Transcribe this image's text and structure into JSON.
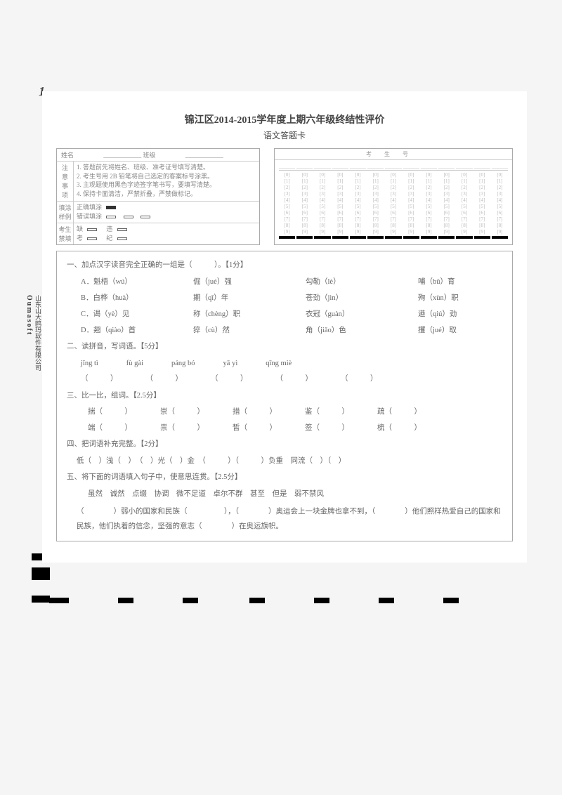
{
  "page_number": "1",
  "title": "锦江区2014-2015学年度上期六年级终结性评价",
  "subtitle": "语文答题卡",
  "info": {
    "name_label": "姓名",
    "class_label": "班级",
    "notice_label": "注意事项",
    "notice_lines": [
      "1. 答题前先将姓名、班级、准考证号填写清楚。",
      "2. 考生号用 2B 铅笔将自己选定的客案标号涂黑。",
      "3. 主观题使用黑色字迹签字笔书写，要填写清楚。",
      "4. 保持卡面清洁，严禁折叠，严禁做标记。"
    ],
    "fill_label": "填涂样例",
    "fill_correct": "正确填涂",
    "fill_wrong": "错误填涂",
    "exam_label": "考生",
    "exam_content_a": "缺",
    "exam_content_b": "违",
    "forbid_label": "禁填",
    "forbid_content_a": "考",
    "forbid_content_b": "纪"
  },
  "bubble": {
    "header": "考生号",
    "digits": [
      "[0]",
      "[1]",
      "[2]",
      "[3]",
      "[4]",
      "[5]",
      "[6]",
      "[7]",
      "[8]",
      "[9]"
    ]
  },
  "q1": {
    "stem": "一、加点汉字读音完全正确的一组是（　　　）。【1分】",
    "opts": [
      [
        "A．魁梧（wú）",
        "倔（jué）强",
        "勾勒（lè）",
        "哺（bǔ）育"
      ],
      [
        "B．白桦（huà）",
        "期（qī）年",
        "苍劲（jìn）",
        "殉（xùn）职"
      ],
      [
        "C．谒（yè）见",
        "称（chèng）职",
        "衣冠（guàn）",
        "遒（qiú）劲"
      ],
      [
        "D．翘（qiào）首",
        "猝（cù）然",
        "角（jiǎo）色",
        "攫（jué）取"
      ]
    ]
  },
  "q2": {
    "stem": "二、读拼音，写词语。【5分】",
    "pinyin": [
      "jǐng tì",
      "fù gài",
      "páng bó",
      "yā yì",
      "qīng miè"
    ]
  },
  "q3": {
    "stem": "三、比一比，组词。【2.5分】",
    "rows": [
      [
        "揣（　　　）",
        "崇（　　　）",
        "措（　　　）",
        "鉴（　　　）",
        "疏（　　　）"
      ],
      [
        "端（　　　）",
        "祟（　　　）",
        "皙（　　　）",
        "签（　　　）",
        "梳（　　　）"
      ]
    ]
  },
  "q4": {
    "stem": "四、把词语补充完整。【2分】",
    "line": "低（　）浅（　）　（　）光（　）金　（　　　）（　　　）负重　同流（　）（　）"
  },
  "q5": {
    "stem": "五、将下面的词语填入句子中，使意思连贯。【2.5分】",
    "words": "虽然　诚然　点缀　协调　微不足道　卓尔不群　甚至　但是　弱不禁风",
    "para": "（　　　　）弱小的国家和民族（　　　　　），（　　　　）奥运会上一块金牌也拿不到，（　　　　）他们照样热爱自己的国家和民族，他们执着的信念，坚强的意志（　　　　）在奥运旗帜。"
  },
  "side_brand": "Oumasoft",
  "side_company": "山东山大鸥玛软件有限公司"
}
